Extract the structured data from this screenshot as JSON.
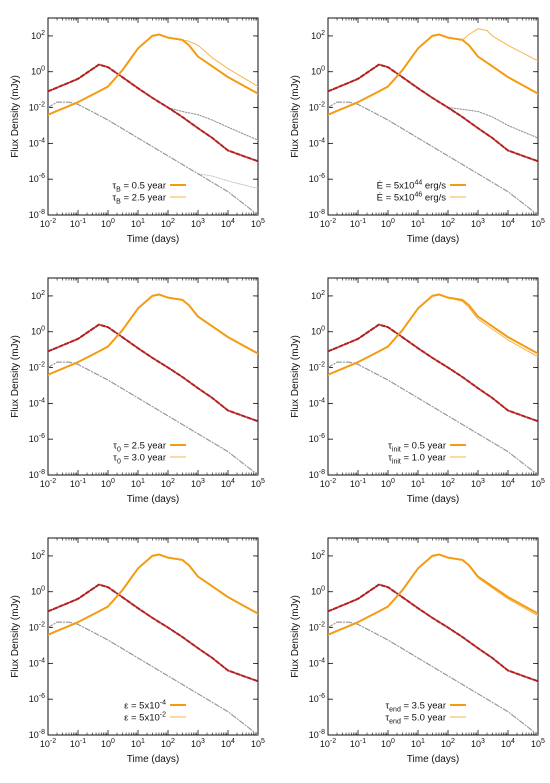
{
  "chart_data": [
    {
      "type": "line",
      "xlabel": "Time (days)",
      "ylabel": "Flux Density (mJy)",
      "xscale": "log",
      "yscale": "log",
      "xlim": [
        0.01,
        100000
      ],
      "ylim": [
        1e-08,
        1000
      ],
      "xticks": [
        "10^-2",
        "10^-1",
        "10^0",
        "10^1",
        "10^2",
        "10^3",
        "10^4",
        "10^5"
      ],
      "yticks": [
        "10^-8",
        "10^-6",
        "10^-4",
        "10^-2",
        "10^0",
        "10^2"
      ],
      "legend_position": "bottom-right",
      "series": [
        {
          "name": "τB = 0.5 year",
          "legend_symbol": "τ",
          "legend_sub": "B",
          "legend_rest": " = 0.5 year",
          "style": "thick-orange",
          "x": [
            0.01,
            0.1,
            0.5,
            1,
            3,
            10,
            30,
            50,
            100,
            300,
            500,
            1000,
            3000,
            10000,
            100000
          ],
          "y": [
            0.004,
            0.02,
            0.08,
            0.15,
            1.2,
            20,
            100,
            120,
            80,
            60,
            30,
            7,
            2,
            0.5,
            0.06
          ]
        },
        {
          "name": "τB = 2.5 year",
          "legend_symbol": "τ",
          "legend_sub": "B",
          "legend_rest": " = 2.5 year",
          "style": "thin-orange",
          "x": [
            100,
            300,
            500,
            1000,
            3000,
            10000,
            100000
          ],
          "y": [
            80,
            60,
            50,
            30,
            6,
            1.5,
            0.15
          ]
        },
        {
          "name": "",
          "style": "dashed-red",
          "x": [
            0.01,
            0.1,
            0.3,
            0.5,
            1,
            3,
            10,
            30,
            100,
            300,
            1000,
            3000,
            10000,
            100000
          ],
          "y": [
            0.08,
            0.4,
            1.4,
            2.5,
            1.8,
            0.5,
            0.12,
            0.035,
            0.01,
            0.003,
            0.0007,
            0.0002,
            4e-05,
            1e-05
          ]
        },
        {
          "name": "",
          "style": "dotted-dark",
          "x": [
            100,
            300,
            1000,
            3000,
            10000,
            100000
          ],
          "y": [
            0.01,
            0.006,
            0.004,
            0.002,
            0.0008,
            0.00015
          ]
        },
        {
          "name": "",
          "style": "dashdot-gray",
          "x": [
            0.01,
            0.02,
            0.05,
            0.1,
            1,
            10,
            100,
            1000,
            10000,
            100000
          ],
          "y": [
            0.01,
            0.02,
            0.02,
            0.015,
            0.002,
            0.0002,
            2e-05,
            2e-06,
            2e-07,
            1e-08
          ]
        },
        {
          "name": "",
          "style": "dotted-light",
          "x": [
            1000,
            3000,
            10000,
            100000
          ],
          "y": [
            2e-06,
            1.5e-06,
            8e-07,
            3e-07
          ]
        }
      ]
    },
    {
      "type": "line",
      "xlabel": "Time (days)",
      "ylabel": "Flux Density (mJy)",
      "xscale": "log",
      "yscale": "log",
      "xlim": [
        0.01,
        100000
      ],
      "ylim": [
        1e-08,
        1000
      ],
      "xticks": [
        "10^-2",
        "10^-1",
        "10^0",
        "10^1",
        "10^2",
        "10^3",
        "10^4",
        "10^5"
      ],
      "yticks": [
        "10^-8",
        "10^-6",
        "10^-4",
        "10^-2",
        "10^0",
        "10^2"
      ],
      "legend_position": "bottom-right",
      "series": [
        {
          "name": "Ė = 5x10^44 erg/s",
          "legend_symbol": "Ė",
          "legend_sub": "",
          "legend_rest": " = 5x10",
          "legend_sup": "44",
          "legend_tail": " erg/s",
          "style": "thick-orange",
          "x": [
            0.01,
            0.1,
            0.5,
            1,
            3,
            10,
            30,
            50,
            100,
            300,
            500,
            1000,
            3000,
            10000,
            100000
          ],
          "y": [
            0.004,
            0.02,
            0.08,
            0.15,
            1.2,
            20,
            100,
            120,
            80,
            60,
            30,
            7,
            2,
            0.5,
            0.06
          ]
        },
        {
          "name": "Ė = 5x10^46 erg/s",
          "legend_symbol": "Ė",
          "legend_sub": "",
          "legend_rest": " = 5x10",
          "legend_sup": "46",
          "legend_tail": " erg/s",
          "style": "thin-orange",
          "x": [
            100,
            300,
            500,
            1000,
            2000,
            3000,
            10000,
            100000
          ],
          "y": [
            80,
            60,
            120,
            250,
            200,
            100,
            30,
            4
          ]
        },
        {
          "name": "",
          "style": "dashed-red",
          "x": [
            0.01,
            0.1,
            0.3,
            0.5,
            1,
            3,
            10,
            30,
            100,
            300,
            1000,
            3000,
            10000,
            100000
          ],
          "y": [
            0.08,
            0.4,
            1.4,
            2.5,
            1.8,
            0.5,
            0.12,
            0.035,
            0.01,
            0.003,
            0.0007,
            0.0002,
            4e-05,
            1e-05
          ]
        },
        {
          "name": "",
          "style": "dotted-dark",
          "x": [
            100,
            300,
            1000,
            3000,
            10000,
            100000
          ],
          "y": [
            0.01,
            0.008,
            0.006,
            0.003,
            0.001,
            0.0002
          ]
        },
        {
          "name": "",
          "style": "dashdot-gray",
          "x": [
            0.01,
            0.02,
            0.05,
            0.1,
            1,
            10,
            100,
            1000,
            10000,
            100000
          ],
          "y": [
            0.01,
            0.02,
            0.02,
            0.015,
            0.002,
            0.0002,
            2e-05,
            2e-06,
            2e-07,
            1e-08
          ]
        }
      ]
    },
    {
      "type": "line",
      "xlabel": "Time (days)",
      "ylabel": "Flux Density (mJy)",
      "xscale": "log",
      "yscale": "log",
      "xlim": [
        0.01,
        100000
      ],
      "ylim": [
        1e-08,
        1000
      ],
      "xticks": [
        "10^-2",
        "10^-1",
        "10^0",
        "10^1",
        "10^2",
        "10^3",
        "10^4",
        "10^5"
      ],
      "yticks": [
        "10^-8",
        "10^-6",
        "10^-4",
        "10^-2",
        "10^0",
        "10^2"
      ],
      "legend_position": "bottom-right",
      "series": [
        {
          "name": "τ0 = 2.5 year",
          "legend_symbol": "τ",
          "legend_sub": "0",
          "legend_rest": " = 2.5 year",
          "style": "thick-orange",
          "x": [
            0.01,
            0.1,
            0.5,
            1,
            3,
            10,
            30,
            50,
            100,
            300,
            500,
            1000,
            3000,
            10000,
            100000
          ],
          "y": [
            0.004,
            0.02,
            0.08,
            0.15,
            1.2,
            20,
            100,
            120,
            80,
            60,
            30,
            7,
            2,
            0.5,
            0.06
          ]
        },
        {
          "name": "τ0 = 3.0 year",
          "legend_symbol": "τ",
          "legend_sub": "0",
          "legend_rest": " = 3.0 year",
          "style": "thin-orange",
          "x": [
            100,
            300,
            500,
            1000,
            3000,
            10000,
            100000
          ],
          "y": [
            80,
            62,
            32,
            7.5,
            2.1,
            0.52,
            0.065
          ]
        },
        {
          "name": "",
          "style": "dashed-red",
          "x": [
            0.01,
            0.1,
            0.3,
            0.5,
            1,
            3,
            10,
            30,
            100,
            300,
            1000,
            3000,
            10000,
            100000
          ],
          "y": [
            0.08,
            0.4,
            1.4,
            2.5,
            1.8,
            0.5,
            0.12,
            0.035,
            0.01,
            0.003,
            0.0007,
            0.0002,
            4e-05,
            1e-05
          ]
        },
        {
          "name": "",
          "style": "dashdot-gray",
          "x": [
            0.01,
            0.02,
            0.05,
            0.1,
            1,
            10,
            100,
            1000,
            10000,
            100000
          ],
          "y": [
            0.01,
            0.02,
            0.02,
            0.015,
            0.002,
            0.0002,
            2e-05,
            2e-06,
            2e-07,
            1e-08
          ]
        }
      ]
    },
    {
      "type": "line",
      "xlabel": "Time (days)",
      "ylabel": "Flux Density (mJy)",
      "xscale": "log",
      "yscale": "log",
      "xlim": [
        0.01,
        100000
      ],
      "ylim": [
        1e-08,
        1000
      ],
      "xticks": [
        "10^-2",
        "10^-1",
        "10^0",
        "10^1",
        "10^2",
        "10^3",
        "10^4",
        "10^5"
      ],
      "yticks": [
        "10^-8",
        "10^-6",
        "10^-4",
        "10^-2",
        "10^0",
        "10^2"
      ],
      "legend_position": "bottom-right",
      "series": [
        {
          "name": "τinit = 0.5 year",
          "legend_symbol": "τ",
          "legend_sub": "init",
          "legend_rest": " = 0.5 year",
          "style": "thick-orange",
          "x": [
            0.01,
            0.1,
            0.5,
            1,
            3,
            10,
            30,
            50,
            100,
            300,
            500,
            1000,
            3000,
            10000,
            100000
          ],
          "y": [
            0.004,
            0.02,
            0.08,
            0.15,
            1.2,
            20,
            100,
            120,
            80,
            60,
            30,
            7,
            2,
            0.5,
            0.06
          ]
        },
        {
          "name": "τinit = 1.0 year",
          "legend_symbol": "τ",
          "legend_sub": "init",
          "legend_rest": " = 1.0 year",
          "style": "thin-orange",
          "x": [
            100,
            300,
            500,
            1000,
            3000,
            10000,
            100000
          ],
          "y": [
            80,
            50,
            22,
            5,
            1.4,
            0.35,
            0.04
          ]
        },
        {
          "name": "",
          "style": "dashed-red",
          "x": [
            0.01,
            0.1,
            0.3,
            0.5,
            1,
            3,
            10,
            30,
            100,
            300,
            1000,
            3000,
            10000,
            100000
          ],
          "y": [
            0.08,
            0.4,
            1.4,
            2.5,
            1.8,
            0.5,
            0.12,
            0.035,
            0.01,
            0.003,
            0.0007,
            0.0002,
            4e-05,
            1e-05
          ]
        },
        {
          "name": "",
          "style": "dashdot-gray",
          "x": [
            0.01,
            0.02,
            0.05,
            0.1,
            1,
            10,
            100,
            1000,
            10000,
            100000
          ],
          "y": [
            0.01,
            0.02,
            0.02,
            0.015,
            0.002,
            0.0002,
            2e-05,
            2e-06,
            2e-07,
            1e-08
          ]
        }
      ]
    },
    {
      "type": "line",
      "xlabel": "Time (days)",
      "ylabel": "Flux Density (mJy)",
      "xscale": "log",
      "yscale": "log",
      "xlim": [
        0.01,
        100000
      ],
      "ylim": [
        1e-08,
        1000
      ],
      "xticks": [
        "10^-2",
        "10^-1",
        "10^0",
        "10^1",
        "10^2",
        "10^3",
        "10^4",
        "10^5"
      ],
      "yticks": [
        "10^-8",
        "10^-6",
        "10^-4",
        "10^-2",
        "10^0",
        "10^2"
      ],
      "legend_position": "bottom-right",
      "series": [
        {
          "name": "ε = 5x10^-4",
          "legend_symbol": "ε",
          "legend_sub": "",
          "legend_rest": " = 5x10",
          "legend_sup": "-4",
          "legend_tail": "",
          "style": "thick-orange",
          "x": [
            0.01,
            0.1,
            0.5,
            1,
            3,
            10,
            30,
            50,
            100,
            300,
            500,
            1000,
            3000,
            10000,
            100000
          ],
          "y": [
            0.004,
            0.02,
            0.08,
            0.15,
            1.2,
            20,
            100,
            120,
            80,
            60,
            30,
            7,
            2,
            0.5,
            0.06
          ]
        },
        {
          "name": "ε = 5x10^-2",
          "legend_symbol": "ε",
          "legend_sub": "",
          "legend_rest": " = 5x10",
          "legend_sup": "-2",
          "legend_tail": "",
          "style": "thin-orange",
          "x": [
            100,
            300,
            500,
            1000,
            3000,
            10000,
            100000
          ],
          "y": [
            80,
            60,
            30,
            7,
            2,
            0.5,
            0.06
          ]
        },
        {
          "name": "",
          "style": "dashed-red",
          "x": [
            0.01,
            0.1,
            0.3,
            0.5,
            1,
            3,
            10,
            30,
            100,
            300,
            1000,
            3000,
            10000,
            100000
          ],
          "y": [
            0.08,
            0.4,
            1.4,
            2.5,
            1.8,
            0.5,
            0.12,
            0.035,
            0.01,
            0.003,
            0.0007,
            0.0002,
            4e-05,
            1e-05
          ]
        },
        {
          "name": "",
          "style": "dashdot-gray",
          "x": [
            0.01,
            0.02,
            0.05,
            0.1,
            1,
            10,
            100,
            1000,
            10000,
            100000
          ],
          "y": [
            0.01,
            0.02,
            0.02,
            0.015,
            0.002,
            0.0002,
            2e-05,
            2e-06,
            2e-07,
            1e-08
          ]
        }
      ]
    },
    {
      "type": "line",
      "xlabel": "Time (days)",
      "ylabel": "Flux Density (mJy)",
      "xscale": "log",
      "yscale": "log",
      "xlim": [
        0.01,
        100000
      ],
      "ylim": [
        1e-08,
        1000
      ],
      "xticks": [
        "10^-2",
        "10^-1",
        "10^0",
        "10^1",
        "10^2",
        "10^3",
        "10^4",
        "10^5"
      ],
      "yticks": [
        "10^-8",
        "10^-6",
        "10^-4",
        "10^-2",
        "10^0",
        "10^2"
      ],
      "legend_position": "bottom-right",
      "series": [
        {
          "name": "τend = 3.5 year",
          "legend_symbol": "τ",
          "legend_sub": "end",
          "legend_rest": " = 3.5 year",
          "style": "thick-orange",
          "x": [
            0.01,
            0.1,
            0.5,
            1,
            3,
            10,
            30,
            50,
            100,
            300,
            500,
            1000,
            3000,
            10000,
            100000
          ],
          "y": [
            0.004,
            0.02,
            0.08,
            0.15,
            1.2,
            20,
            100,
            120,
            80,
            60,
            30,
            7,
            2,
            0.5,
            0.06
          ]
        },
        {
          "name": "τend = 5.0 year",
          "legend_symbol": "τ",
          "legend_sub": "end",
          "legend_rest": " = 5.0 year",
          "style": "thin-orange",
          "x": [
            100,
            300,
            500,
            1000,
            3000,
            10000,
            100000
          ],
          "y": [
            80,
            60,
            28,
            6,
            1.6,
            0.4,
            0.045
          ]
        },
        {
          "name": "",
          "style": "dashed-red",
          "x": [
            0.01,
            0.1,
            0.3,
            0.5,
            1,
            3,
            10,
            30,
            100,
            300,
            1000,
            3000,
            10000,
            100000
          ],
          "y": [
            0.08,
            0.4,
            1.4,
            2.5,
            1.8,
            0.5,
            0.12,
            0.035,
            0.01,
            0.003,
            0.0007,
            0.0002,
            4e-05,
            1e-05
          ]
        },
        {
          "name": "",
          "style": "dashdot-gray",
          "x": [
            0.01,
            0.02,
            0.05,
            0.1,
            1,
            10,
            100,
            1000,
            10000,
            100000
          ],
          "y": [
            0.01,
            0.02,
            0.02,
            0.015,
            0.002,
            0.0002,
            2e-05,
            2e-06,
            2e-07,
            1e-08
          ]
        }
      ]
    }
  ],
  "colors": {
    "thick-orange": "#f39c12",
    "thin-orange": "#f7b54a",
    "dashed-red": "#b22222",
    "dashdot-gray": "#9a9a9a",
    "dotted-dark": "#8c8c8c",
    "dotted-light": "#c4c4c4",
    "axis": "#111111"
  }
}
